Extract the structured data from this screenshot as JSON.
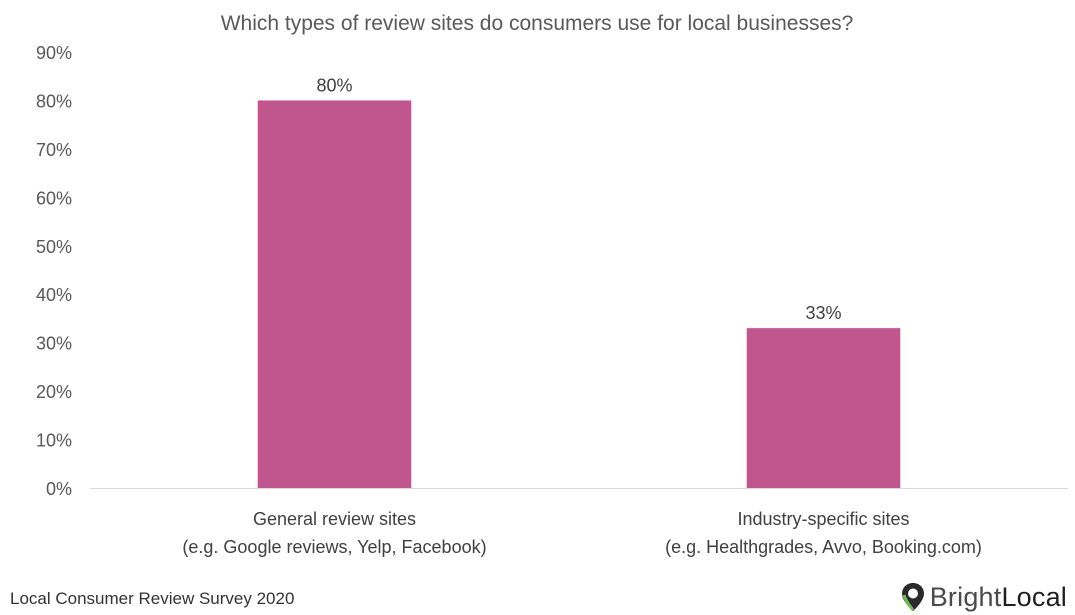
{
  "chart_data": {
    "type": "bar",
    "title": "Which types of review sites do consumers use for local businesses?",
    "categories": [
      [
        "General review sites",
        "(e.g. Google reviews, Yelp, Facebook)"
      ],
      [
        "Industry-specific sites",
        "(e.g. Healthgrades, Avvo, Booking.com)"
      ]
    ],
    "values": [
      80,
      33
    ],
    "value_labels": [
      "80%",
      "33%"
    ],
    "ylim": [
      0,
      90
    ],
    "yticks": [
      0,
      10,
      20,
      30,
      40,
      50,
      60,
      70,
      80,
      90
    ],
    "ytick_labels": [
      "0%",
      "10%",
      "20%",
      "30%",
      "40%",
      "50%",
      "60%",
      "70%",
      "80%",
      "90%"
    ],
    "grid": false,
    "bar_color": "#c1568f"
  },
  "footer": {
    "source": "Local Consumer Review Survey 2020",
    "brand_part1": "Bright",
    "brand_part2": "Local",
    "brand_icon": "map-pin-icon"
  }
}
